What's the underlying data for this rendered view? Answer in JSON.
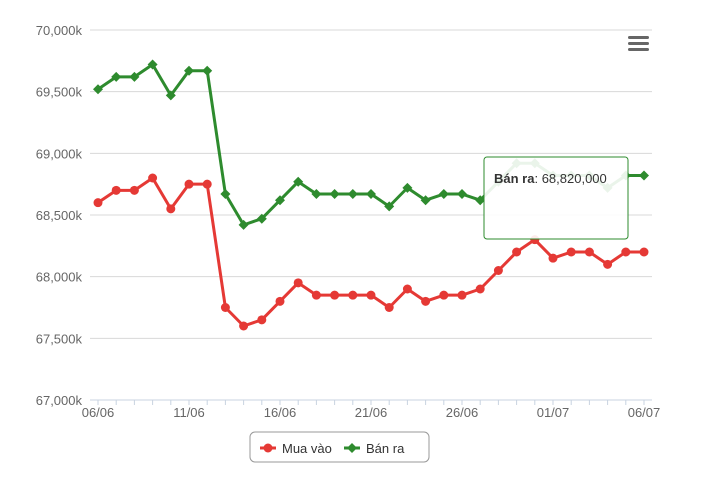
{
  "chart_data": {
    "type": "line",
    "title": "",
    "xlabel": "",
    "ylabel": "",
    "ylim": [
      67000,
      70000
    ],
    "x": [
      "06/06",
      "07/06",
      "08/06",
      "09/06",
      "10/06",
      "11/06",
      "12/06",
      "13/06",
      "14/06",
      "15/06",
      "16/06",
      "17/06",
      "18/06",
      "19/06",
      "20/06",
      "21/06",
      "22/06",
      "23/06",
      "24/06",
      "25/06",
      "26/06",
      "27/06",
      "28/06",
      "29/06",
      "30/06",
      "01/07",
      "02/07",
      "03/07",
      "04/07",
      "05/07",
      "06/07"
    ],
    "x_tick_labels": [
      "06/06",
      "11/06",
      "16/06",
      "21/06",
      "26/06",
      "01/07",
      "06/07"
    ],
    "y_ticks": [
      67000,
      67500,
      68000,
      68500,
      69000,
      69500,
      70000
    ],
    "y_tick_labels": [
      "67,000k",
      "67,500k",
      "68,000k",
      "68,500k",
      "69,000k",
      "69,500k",
      "70,000k"
    ],
    "grid": true,
    "legend_position": "bottom-center",
    "series": [
      {
        "name": "Mua vào",
        "color": "#e53935",
        "marker": "circle",
        "values": [
          68600,
          68700,
          68700,
          68800,
          68550,
          68750,
          68750,
          67750,
          67600,
          67650,
          67800,
          67950,
          67850,
          67850,
          67850,
          67850,
          67750,
          67900,
          67800,
          67850,
          67850,
          67900,
          68050,
          68200,
          68300,
          68150,
          68200,
          68200,
          68100,
          68200,
          68200
        ]
      },
      {
        "name": "Bán ra",
        "color": "#2e8b2e",
        "marker": "diamond",
        "values": [
          69520,
          69620,
          69620,
          69720,
          69470,
          69670,
          69670,
          68670,
          68420,
          68470,
          68620,
          68770,
          68670,
          68670,
          68670,
          68670,
          68570,
          68720,
          68620,
          68670,
          68670,
          68620,
          68770,
          68920,
          68920,
          68820,
          68820,
          68820,
          68720,
          68820,
          68820
        ]
      }
    ],
    "tooltip": {
      "series_label": "Bán ra",
      "separator": ":",
      "value_text": "68,820,000",
      "border_color": "#2e8b2e"
    }
  },
  "toolbar": {
    "menu_icon": "hamburger-menu-icon"
  }
}
